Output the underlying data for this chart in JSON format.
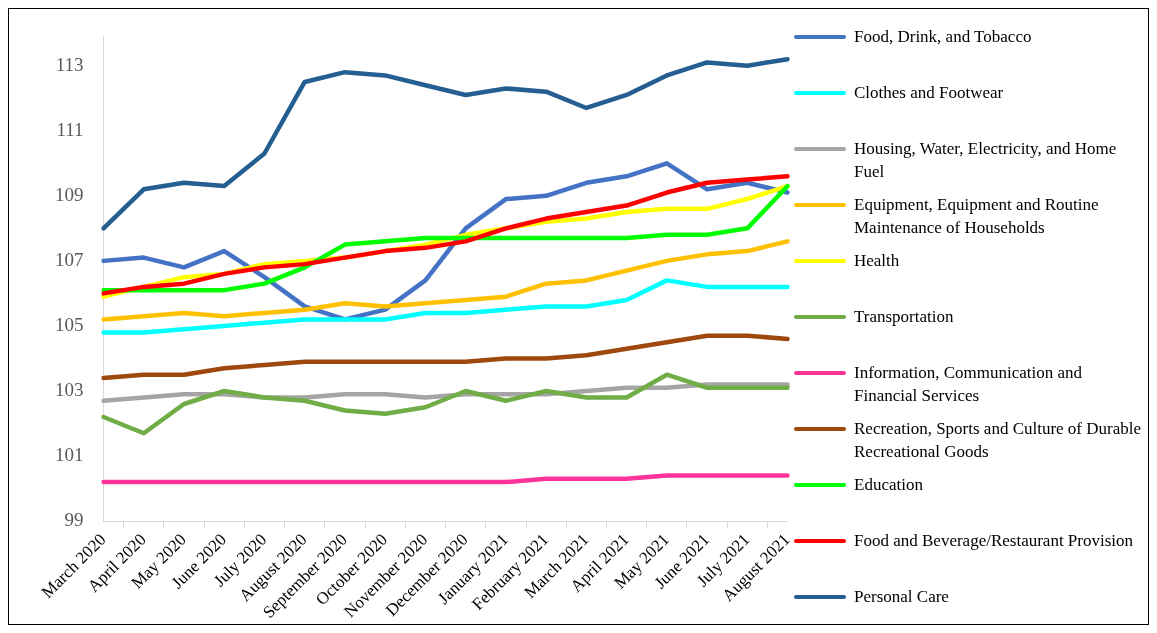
{
  "chart_data": {
    "type": "line",
    "categories": [
      "March 2020",
      "April 2020",
      "May 2020",
      "June 2020",
      "July 2020",
      "August 2020",
      "September 2020",
      "October 2020",
      "November 2020",
      "December 2020",
      "January 2021",
      "February 2021",
      "March 2021",
      "April 2021",
      "May 2021",
      "June 2021",
      "July 2021",
      "August 2021"
    ],
    "ylim": [
      99,
      113.9
    ],
    "yticks": [
      99,
      101,
      103,
      105,
      107,
      109,
      111,
      113
    ],
    "grid": false,
    "legend": "right",
    "marker": "none",
    "line_style": "solid",
    "series": [
      {
        "name": "Food, Drink, and Tobacco",
        "color": "#4472c4",
        "values": [
          107.0,
          107.1,
          106.8,
          107.3,
          106.5,
          105.6,
          105.2,
          105.5,
          106.4,
          108.0,
          108.9,
          109.0,
          109.4,
          109.6,
          110.0,
          109.2,
          109.4,
          109.1
        ]
      },
      {
        "name": "Clothes and Footwear",
        "color": "#00ffff",
        "values": [
          104.8,
          104.8,
          104.9,
          105.0,
          105.1,
          105.2,
          105.2,
          105.2,
          105.4,
          105.4,
          105.5,
          105.6,
          105.6,
          105.8,
          106.4,
          106.2,
          106.2,
          106.2
        ]
      },
      {
        "name": "Housing, Water, Electricity, and Home Fuel",
        "color": "#a5a5a5",
        "values": [
          102.7,
          102.8,
          102.9,
          102.9,
          102.8,
          102.8,
          102.9,
          102.9,
          102.8,
          102.9,
          102.9,
          102.9,
          103.0,
          103.1,
          103.1,
          103.2,
          103.2,
          103.2
        ]
      },
      {
        "name": "Equipment, Equipment and Routine Maintenance of Households",
        "color": "#ffc000",
        "values": [
          105.2,
          105.3,
          105.4,
          105.3,
          105.4,
          105.5,
          105.7,
          105.6,
          105.7,
          105.8,
          105.9,
          106.3,
          106.4,
          106.7,
          107.0,
          107.2,
          107.3,
          107.6
        ]
      },
      {
        "name": "Health",
        "color": "#ffff00",
        "values": [
          105.9,
          106.2,
          106.5,
          106.6,
          106.9,
          107.0,
          107.1,
          107.3,
          107.5,
          107.8,
          108.0,
          108.2,
          108.3,
          108.5,
          108.6,
          108.6,
          108.9,
          109.3
        ]
      },
      {
        "name": "Transportation",
        "color": "#70ad47",
        "values": [
          102.2,
          101.7,
          102.6,
          103.0,
          102.8,
          102.7,
          102.4,
          102.3,
          102.5,
          103.0,
          102.7,
          103.0,
          102.8,
          102.8,
          103.5,
          103.1,
          103.1,
          103.1
        ]
      },
      {
        "name": "Information, Communication and Financial Services",
        "color": "#ff3399",
        "values": [
          100.2,
          100.2,
          100.2,
          100.2,
          100.2,
          100.2,
          100.2,
          100.2,
          100.2,
          100.2,
          100.2,
          100.3,
          100.3,
          100.3,
          100.4,
          100.4,
          100.4,
          100.4
        ]
      },
      {
        "name": "Recreation, Sports and Culture of Durable Recreational Goods",
        "color": "#9e480e",
        "values": [
          103.4,
          103.5,
          103.5,
          103.7,
          103.8,
          103.9,
          103.9,
          103.9,
          103.9,
          103.9,
          104.0,
          104.0,
          104.1,
          104.3,
          104.5,
          104.7,
          104.7,
          104.6
        ]
      },
      {
        "name": "Education",
        "color": "#00ff00",
        "values": [
          106.1,
          106.1,
          106.1,
          106.1,
          106.3,
          106.8,
          107.5,
          107.6,
          107.7,
          107.7,
          107.7,
          107.7,
          107.7,
          107.7,
          107.8,
          107.8,
          108.0,
          109.3
        ]
      },
      {
        "name": "Food and Beverage/Restaurant Provision",
        "color": "#ff0000",
        "values": [
          106.0,
          106.2,
          106.3,
          106.6,
          106.8,
          106.9,
          107.1,
          107.3,
          107.4,
          107.6,
          108.0,
          108.3,
          108.5,
          108.7,
          109.1,
          109.4,
          109.5,
          109.6
        ]
      },
      {
        "name": "Personal Care",
        "color": "#255e91",
        "values": [
          108.0,
          109.2,
          109.4,
          109.3,
          110.3,
          112.5,
          112.8,
          112.7,
          112.4,
          112.1,
          112.3,
          112.2,
          111.7,
          112.1,
          112.7,
          113.1,
          113.0,
          113.2
        ]
      }
    ]
  }
}
